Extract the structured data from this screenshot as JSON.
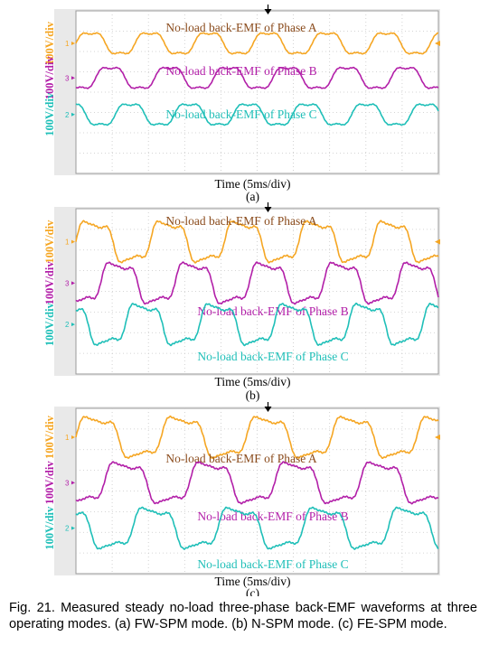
{
  "chart_data": [
    {
      "type": "line",
      "panel_label": "(a)",
      "xlabel": "Time (5ms/div)",
      "x_divisions": 10,
      "y_divisions": 8,
      "grid": true,
      "series": [
        {
          "name": "No-load back-EMF of Phase A",
          "ylabel": "100V/div",
          "marker": "1",
          "color": "#F5A623",
          "offset_div": 1.6,
          "amplitude_div": 0.55,
          "period_div": 1.63,
          "phase_deg": 0,
          "shape": "flat-top"
        },
        {
          "name": "No-load back-EMF of Phase B",
          "ylabel": "100V/div",
          "marker": "3",
          "color": "#B21FA8",
          "offset_div": 3.3,
          "amplitude_div": 0.55,
          "period_div": 1.63,
          "phase_deg": 120,
          "shape": "flat-top"
        },
        {
          "name": "No-load back-EMF of Phase C",
          "ylabel": "100V/div",
          "marker": "2",
          "color": "#1FBFB8",
          "offset_div": 5.1,
          "amplitude_div": 0.55,
          "period_div": 1.63,
          "phase_deg": 240,
          "shape": "flat-top"
        }
      ]
    },
    {
      "type": "line",
      "panel_label": "(b)",
      "xlabel": "Time (5ms/div)",
      "x_divisions": 10,
      "y_divisions": 8,
      "grid": true,
      "series": [
        {
          "name": "No-load back-EMF of Phase A",
          "ylabel": "100V/div",
          "marker": "1",
          "color": "#F5A623",
          "offset_div": 1.6,
          "amplitude_div": 1.05,
          "period_div": 2.05,
          "phase_deg": 0,
          "shape": "stepped"
        },
        {
          "name": "No-load back-EMF of Phase B",
          "ylabel": "100V/div",
          "marker": "3",
          "color": "#B21FA8",
          "offset_div": 3.6,
          "amplitude_div": 1.05,
          "period_div": 2.05,
          "phase_deg": 120,
          "shape": "stepped"
        },
        {
          "name": "No-load back-EMF of Phase C",
          "ylabel": "100V/div",
          "marker": "2",
          "color": "#1FBFB8",
          "offset_div": 5.6,
          "amplitude_div": 1.05,
          "period_div": 2.05,
          "phase_deg": 240,
          "shape": "stepped"
        }
      ]
    },
    {
      "type": "line",
      "panel_label": "(c)",
      "xlabel": "Time (5ms/div)",
      "x_divisions": 10,
      "y_divisions": 8,
      "grid": true,
      "series": [
        {
          "name": "No-load back-EMF of Phase A",
          "ylabel": "100V/div",
          "marker": "1",
          "color": "#F5A623",
          "offset_div": 1.4,
          "amplitude_div": 1.05,
          "period_div": 2.35,
          "phase_deg": 0,
          "shape": "stepped"
        },
        {
          "name": "No-load back-EMF of Phase B",
          "ylabel": "100V/div",
          "marker": "3",
          "color": "#B21FA8",
          "offset_div": 3.6,
          "amplitude_div": 1.05,
          "period_div": 2.35,
          "phase_deg": 120,
          "shape": "stepped"
        },
        {
          "name": "No-load back-EMF of Phase C",
          "ylabel": "100V/div",
          "marker": "2",
          "color": "#1FBFB8",
          "offset_div": 5.8,
          "amplitude_div": 1.05,
          "period_div": 2.35,
          "phase_deg": 240,
          "shape": "stepped"
        }
      ]
    }
  ],
  "caption": "Fig. 21. Measured steady no-load three-phase back-EMF waveforms at three operating modes. (a) FW-SPM mode. (b) N-SPM mode. (c) FE-SPM mode."
}
